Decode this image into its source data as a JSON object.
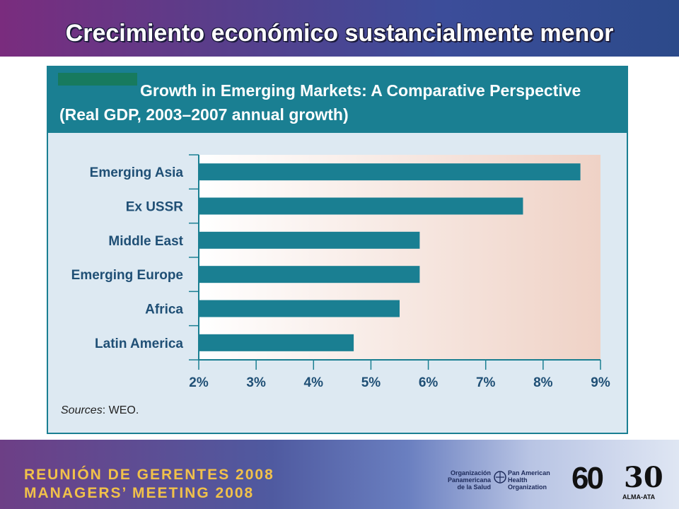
{
  "slide": {
    "title": "Crecimiento económico sustancialmente menor"
  },
  "chart": {
    "title": "Growth in Emerging Markets: A Comparative Perspective",
    "subtitle": "(Real GDP, 2003–2007 annual growth)",
    "sources_label": "Sources",
    "sources_value": ": WEO."
  },
  "chart_data": {
    "type": "bar",
    "orientation": "horizontal",
    "title": "Growth in Emerging Markets: A Comparative Perspective",
    "subtitle": "(Real GDP, 2003–2007 annual growth)",
    "categories": [
      "Emerging Asia",
      "Ex USSR",
      "Middle East",
      "Emerging Europe",
      "Africa",
      "Latin America"
    ],
    "values": [
      8.65,
      7.65,
      5.85,
      5.85,
      5.5,
      4.7
    ],
    "xlim": [
      2,
      9
    ],
    "x_ticks": [
      2,
      3,
      4,
      5,
      6,
      7,
      8,
      9
    ],
    "x_tick_labels": [
      "2%",
      "3%",
      "4%",
      "5%",
      "6%",
      "7%",
      "8%",
      "9%"
    ],
    "xlabel": "",
    "ylabel": "",
    "grid": false,
    "colors": {
      "bar": "#1a7f92",
      "plot_background_start": "#ffffff",
      "plot_background_end": "#efd2c6",
      "axis": "#1a7f92",
      "label": "#1f4f75"
    }
  },
  "footer": {
    "line1": "REUNIÓN DE GERENTES 2008",
    "line2": "MANAGERS’ MEETING 2008",
    "paho_es": "Organización\nPanamericana\nde la Salud",
    "paho_en": "Pan American\nHealth\nOrganization",
    "logo_60": "60",
    "logo_30": "30",
    "logo_30_caption": "ALMA-ATA"
  }
}
